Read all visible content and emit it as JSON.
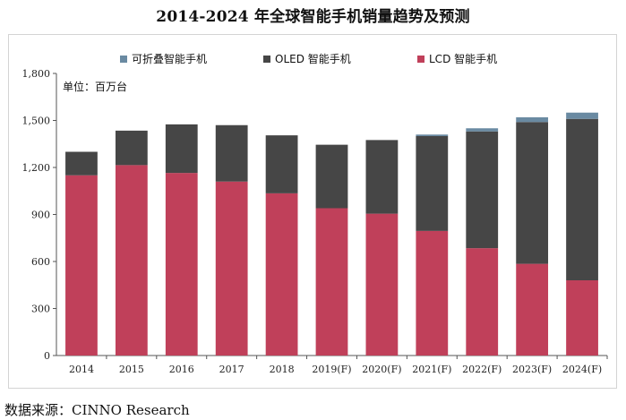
{
  "title": "2014-2024 年全球智能手机销量趋势及预测",
  "unit_label": "单位：百万台",
  "source": "数据来源：CINNO Research",
  "chart_data": {
    "type": "bar",
    "stacked": true,
    "categories": [
      "2014",
      "2015",
      "2016",
      "2017",
      "2018",
      "2019(F)",
      "2020(F)",
      "2021(F)",
      "2022(F)",
      "2023(F)",
      "2024(F)"
    ],
    "series": [
      {
        "name": "LCD 智能手机",
        "color": "#c0405a",
        "values": [
          1150,
          1215,
          1165,
          1110,
          1035,
          940,
          905,
          795,
          685,
          585,
          480
        ]
      },
      {
        "name": "OLED 智能手机",
        "color": "#464646",
        "values": [
          150,
          220,
          310,
          360,
          370,
          405,
          470,
          605,
          745,
          905,
          1030
        ]
      },
      {
        "name": "可折叠智能手机",
        "color": "#6a8aa2",
        "values": [
          0,
          0,
          0,
          0,
          0,
          0,
          0,
          10,
          20,
          30,
          40
        ]
      }
    ],
    "legend_order": [
      2,
      1,
      0
    ],
    "ylim": [
      0,
      1800
    ],
    "yticks": [
      0,
      300,
      600,
      900,
      "1,200",
      "1,500",
      "1,800"
    ],
    "ytick_values": [
      0,
      300,
      600,
      900,
      1200,
      1500,
      1800
    ],
    "legend_position": "top",
    "grid": false
  }
}
